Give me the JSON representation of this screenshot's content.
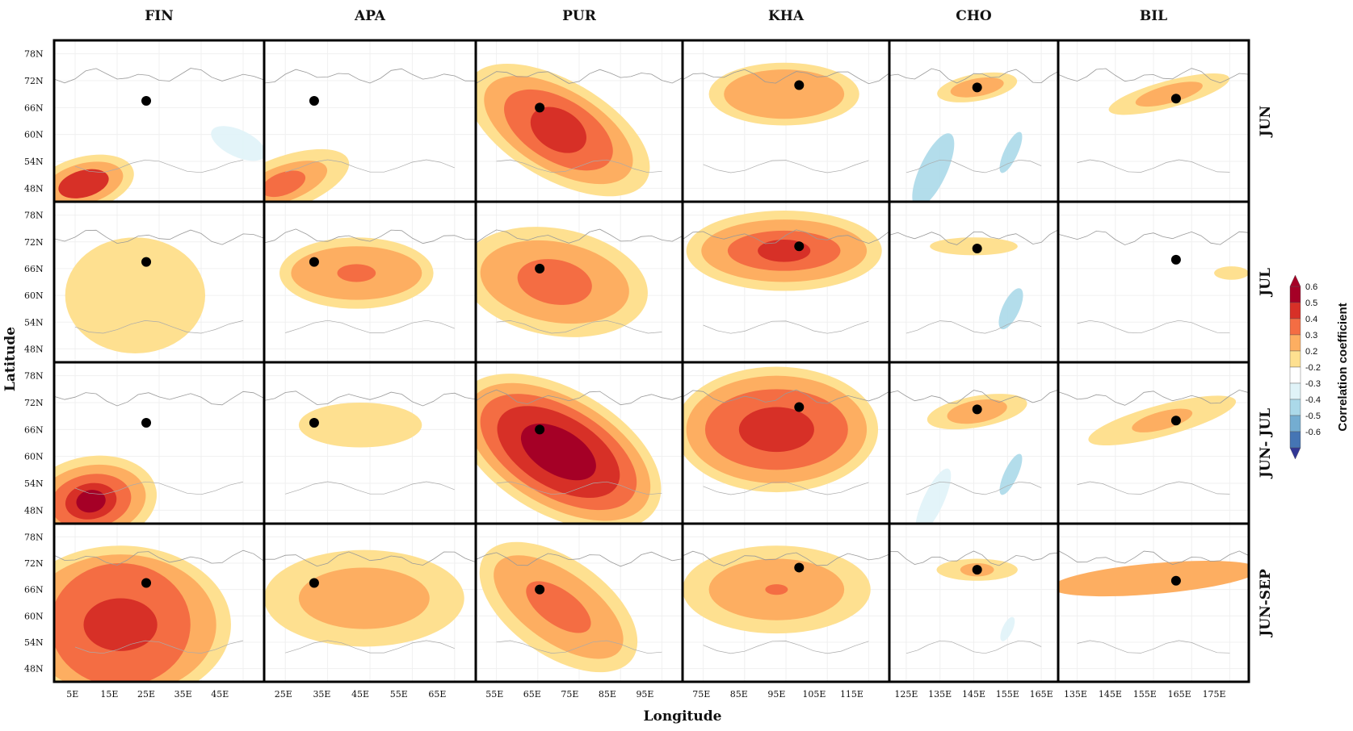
{
  "chart_data": {
    "type": "heatmap",
    "title": "",
    "xlabel": "Longitude",
    "ylabel": "Latitude",
    "columns": [
      "FIN",
      "APA",
      "PUR",
      "KHA",
      "CHO",
      "BIL"
    ],
    "rows": [
      "JUN",
      "JUL",
      "JUN- JUL",
      "JUN-SEP"
    ],
    "lat_ticks": [
      "78N",
      "72N",
      "66N",
      "60N",
      "54N",
      "48N"
    ],
    "lat_values": [
      78,
      72,
      66,
      60,
      54,
      48
    ],
    "lon_ticks": [
      [
        "5E",
        "15E",
        "25E",
        "35E",
        "45E"
      ],
      [
        "25E",
        "35E",
        "45E",
        "55E",
        "65E"
      ],
      [
        "55E",
        "65E",
        "75E",
        "85E",
        "95E"
      ],
      [
        "75E",
        "85E",
        "95E",
        "105E",
        "115E"
      ],
      [
        "125E",
        "135E",
        "145E",
        "155E",
        "165E"
      ],
      [
        "135E",
        "145E",
        "155E",
        "165E",
        "175E"
      ]
    ],
    "lon_ranges": [
      [
        0,
        57
      ],
      [
        20,
        75
      ],
      [
        50,
        105
      ],
      [
        70,
        125
      ],
      [
        120,
        170
      ],
      [
        130,
        185
      ]
    ],
    "lat_range": [
      45,
      81
    ],
    "colorbar": {
      "title": "Correlation coefficient",
      "labels": [
        "0.6",
        "0.5",
        "0.4",
        "0.3",
        "0.2",
        "-0.2",
        "-0.3",
        "-0.4",
        "-0.5",
        "-0.6"
      ],
      "colors": [
        "#a50026",
        "#d73027",
        "#f46d43",
        "#fdae61",
        "#fee090",
        "#ffffff",
        "#e0f3f8",
        "#abd9e9",
        "#74add1",
        "#4575b4",
        "#313695"
      ]
    },
    "sites": {
      "FIN": {
        "lon": 25,
        "lat": 67.5
      },
      "APA": {
        "lon": 33,
        "lat": 67.5
      },
      "PUR": {
        "lon": 67,
        "lat": 66
      },
      "KHA": {
        "lon": 101,
        "lat": 71
      },
      "CHO": {
        "lon": 146,
        "lat": 70.5
      },
      "BIL": {
        "lon": 164,
        "lat": 68
      }
    }
  }
}
